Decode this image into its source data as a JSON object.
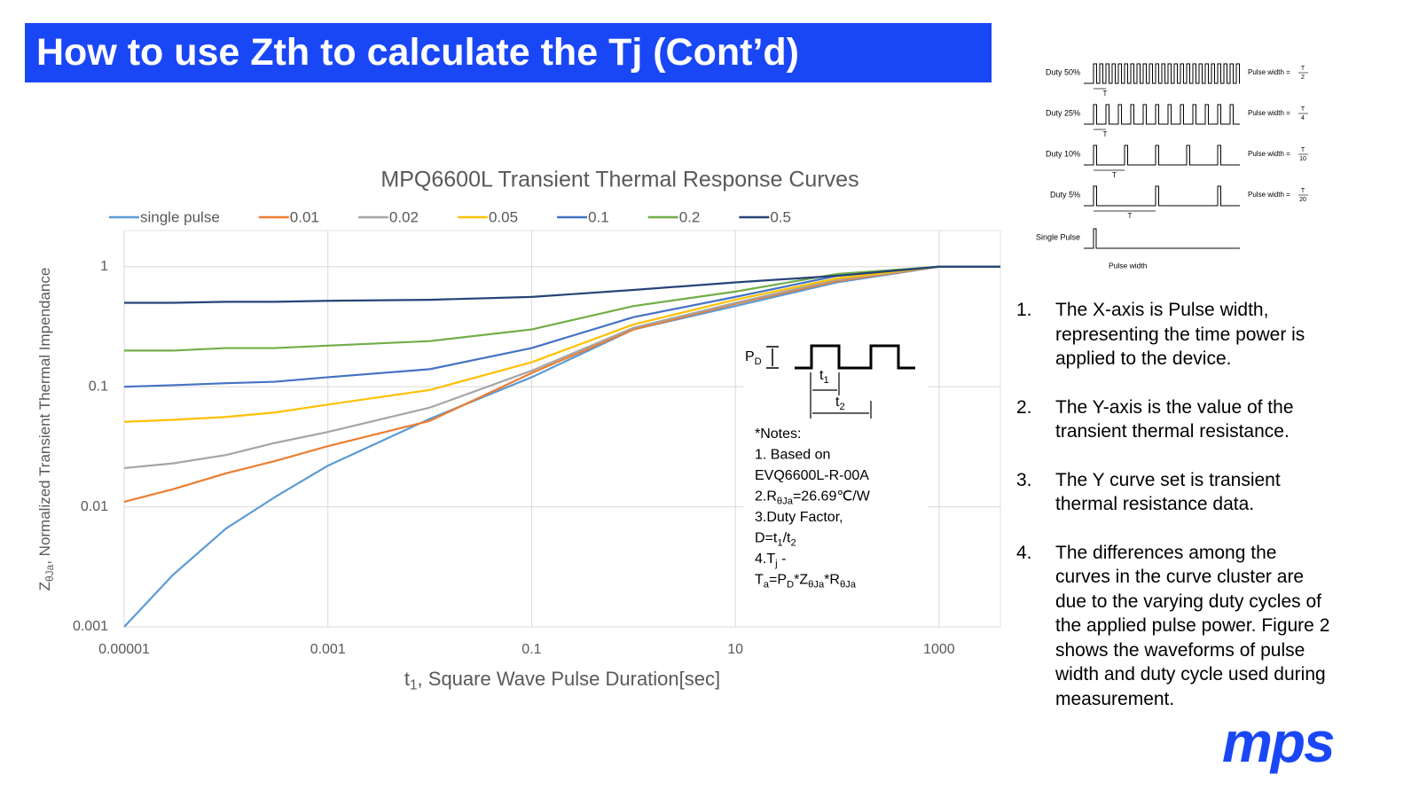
{
  "header": {
    "title": "How to use Zth to calculate the Tj (Cont’d)"
  },
  "chart_data": {
    "type": "line",
    "title": "MPQ6600L Transient  Thermal Response Curves",
    "xlabel": [
      "t",
      "1",
      ", Square Wave Pulse Duration[sec]"
    ],
    "ylabel": [
      "Z",
      "θJa",
      ", Normalized Transient Thermal Impendance"
    ],
    "x": [
      1e-05,
      3e-05,
      0.0001,
      0.0003,
      0.001,
      0.01,
      0.1,
      1,
      10,
      100,
      1000,
      4000
    ],
    "series": [
      {
        "name": "single pulse",
        "color": "#5b9bd5",
        "values": [
          0.001,
          0.0027,
          0.0066,
          0.012,
          0.022,
          0.054,
          0.12,
          0.3,
          0.47,
          0.74,
          1,
          1
        ]
      },
      {
        "name": "0.01",
        "color": "#ed7d31",
        "values": [
          0.011,
          0.014,
          0.019,
          0.024,
          0.032,
          0.052,
          0.13,
          0.3,
          0.49,
          0.76,
          1,
          1
        ]
      },
      {
        "name": "0.02",
        "color": "#a5a5a5",
        "values": [
          0.021,
          0.023,
          0.027,
          0.034,
          0.042,
          0.067,
          0.136,
          0.31,
          0.5,
          0.78,
          1,
          1
        ]
      },
      {
        "name": "0.05",
        "color": "#ffc000",
        "values": [
          0.051,
          0.053,
          0.056,
          0.061,
          0.071,
          0.094,
          0.16,
          0.33,
          0.53,
          0.8,
          1,
          1
        ]
      },
      {
        "name": "0.1",
        "color": "#4472c4",
        "values": [
          0.1,
          0.103,
          0.107,
          0.11,
          0.12,
          0.14,
          0.21,
          0.38,
          0.56,
          0.84,
          1,
          1
        ]
      },
      {
        "name": "0.2",
        "color": "#70ad47",
        "values": [
          0.2,
          0.2,
          0.21,
          0.21,
          0.22,
          0.24,
          0.3,
          0.47,
          0.62,
          0.87,
          1,
          1
        ]
      },
      {
        "name": "0.5",
        "color": "#264478",
        "values": [
          0.5,
          0.5,
          0.51,
          0.51,
          0.52,
          0.53,
          0.56,
          0.64,
          0.74,
          0.84,
          1,
          1
        ]
      }
    ],
    "xlim": [
      1e-05,
      4000
    ],
    "ylim": [
      0.001,
      2
    ],
    "xticks": [
      1e-05,
      0.001,
      0.1,
      10,
      1000
    ],
    "yticks": [
      0.001,
      0.01,
      0.1,
      1
    ],
    "log_x": true,
    "log_y": true,
    "grid": true,
    "legend": "top"
  },
  "notes": {
    "pd": [
      "P",
      "D"
    ],
    "t1": [
      "t",
      "1"
    ],
    "t2": [
      "t",
      "2"
    ],
    "lines": [
      "*Notes:",
      "1. Based on",
      "EVQ6600L-R-00A",
      [
        "2.R",
        "θJa",
        "=26.69℃/W"
      ],
      "3.Duty Factor,",
      [
        "D=t",
        "1",
        "/t",
        "2"
      ],
      [
        "4.T",
        "j",
        " -"
      ],
      [
        "T",
        "a",
        "=P",
        "D",
        "*Z",
        "θJa",
        "*R",
        "θJa"
      ]
    ]
  },
  "waveforms": {
    "rows": [
      {
        "label": "Duty 50%",
        "pulse_width": "Pulse width =",
        "num": "T",
        "den": "2",
        "period": "T"
      },
      {
        "label": "Duty 25%",
        "pulse_width": "Pulse width =",
        "num": "T",
        "den": "4",
        "period": "T"
      },
      {
        "label": "Duty 10%",
        "pulse_width": "Pulse width =",
        "num": "T",
        "den": "10",
        "period": "T"
      },
      {
        "label": "Duty 5%",
        "pulse_width": "Pulse width =",
        "num": "T",
        "den": "20",
        "period": "T"
      }
    ],
    "single": {
      "label": "Single Pulse",
      "width_label": "Pulse width"
    }
  },
  "list": [
    {
      "num": "1.",
      "text": "The X-axis is Pulse width, representing the time power is applied to the device."
    },
    {
      "num": "2.",
      "text": "The Y-axis is the value of the transient thermal resistance."
    },
    {
      "num": "3.",
      "text": "The Y curve set is transient thermal resistance data."
    },
    {
      "num": "4.",
      "text": "The differences among the curves in the curve cluster are due to the varying duty cycles of the applied pulse power. Figure 2 shows the waveforms of pulse width and duty cycle used during measurement."
    }
  ],
  "logo": "mps"
}
